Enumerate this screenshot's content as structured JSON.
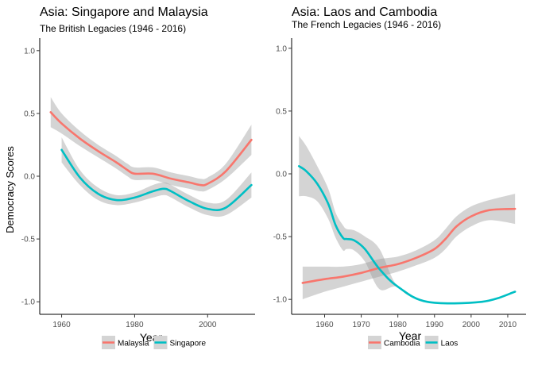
{
  "chart_data": [
    {
      "type": "line",
      "title": "Asia: Singapore and Malaysia",
      "subtitle": "The British Legacies (1946 - 2016)",
      "xlabel": "Year",
      "ylabel": "Democracy Scores",
      "xlim": [
        1954,
        2013
      ],
      "ylim": [
        -1.1,
        1.1
      ],
      "x_ticks": [
        1960,
        1980,
        2000
      ],
      "y_ticks": [
        1.0,
        0.5,
        0.0,
        -0.5,
        -1.0
      ],
      "y_tick_labels": [
        "1.0",
        "0.5",
        "0.0",
        "-0.5",
        "-1.0"
      ],
      "grid": false,
      "legend_position": "bottom",
      "series": [
        {
          "name": "Malaysia",
          "color": "#F8766D",
          "x": [
            1957,
            1960,
            1965,
            1970,
            1975,
            1978,
            1980,
            1985,
            1990,
            1995,
            1998,
            2000,
            2005,
            2012
          ],
          "y": [
            0.51,
            0.42,
            0.3,
            0.2,
            0.11,
            0.05,
            0.02,
            0.02,
            -0.02,
            -0.05,
            -0.07,
            -0.06,
            0.04,
            0.29
          ],
          "band": [
            0.12,
            0.08,
            0.06,
            0.05,
            0.05,
            0.05,
            0.05,
            0.05,
            0.05,
            0.05,
            0.05,
            0.05,
            0.06,
            0.12
          ]
        },
        {
          "name": "Singapore",
          "color": "#00BFC4",
          "x": [
            1960,
            1965,
            1970,
            1975,
            1980,
            1985,
            1988,
            1990,
            1995,
            2000,
            2005,
            2012
          ],
          "y": [
            0.21,
            -0.01,
            -0.14,
            -0.19,
            -0.17,
            -0.12,
            -0.1,
            -0.12,
            -0.2,
            -0.26,
            -0.25,
            -0.07
          ],
          "band": [
            0.1,
            0.06,
            0.05,
            0.04,
            0.04,
            0.05,
            0.05,
            0.05,
            0.05,
            0.05,
            0.06,
            0.1
          ]
        }
      ]
    },
    {
      "type": "line",
      "title": "Asia: Laos and Cambodia",
      "subtitle": "The French Legacies (1946 - 2016)",
      "xlabel": "Year",
      "ylabel": "",
      "xlim": [
        1951,
        2015
      ],
      "ylim": [
        -1.1,
        1.1
      ],
      "x_ticks": [
        1960,
        1970,
        1980,
        1990,
        2000,
        2010
      ],
      "y_ticks": [
        1.0,
        0.5,
        0.0,
        -0.5,
        -1.0
      ],
      "y_tick_labels": [
        "1.0",
        "0.5",
        "0.0",
        "-0.5",
        "-1.0"
      ],
      "grid": false,
      "legend_position": "bottom",
      "series": [
        {
          "name": "Cambodia",
          "color": "#F8766D",
          "x": [
            1954,
            1960,
            1965,
            1970,
            1975,
            1980,
            1985,
            1990,
            1993,
            1996,
            2000,
            2005,
            2012
          ],
          "y": [
            -0.85,
            -0.82,
            -0.8,
            -0.77,
            -0.73,
            -0.7,
            -0.65,
            -0.58,
            -0.5,
            -0.4,
            -0.32,
            -0.27,
            -0.26
          ],
          "band": [
            0.13,
            0.1,
            0.08,
            0.07,
            0.07,
            0.06,
            0.06,
            0.07,
            0.08,
            0.08,
            0.08,
            0.08,
            0.12
          ]
        },
        {
          "name": "Laos",
          "color": "#00BFC4",
          "x": [
            1953,
            1955,
            1958,
            1961,
            1963,
            1965,
            1966,
            1968,
            1971,
            1975,
            1980,
            1988,
            2003,
            2012
          ],
          "y": [
            0.08,
            0.04,
            -0.06,
            -0.22,
            -0.39,
            -0.49,
            -0.5,
            -0.51,
            -0.58,
            -0.74,
            -0.88,
            -1.0,
            -1.0,
            -0.92
          ],
          "band": [
            0.24,
            0.2,
            0.14,
            0.12,
            0.1,
            0.1,
            0.08,
            0.08,
            0.1,
            0.16,
            0.0,
            0.0,
            0.0,
            0.0
          ]
        }
      ]
    }
  ]
}
